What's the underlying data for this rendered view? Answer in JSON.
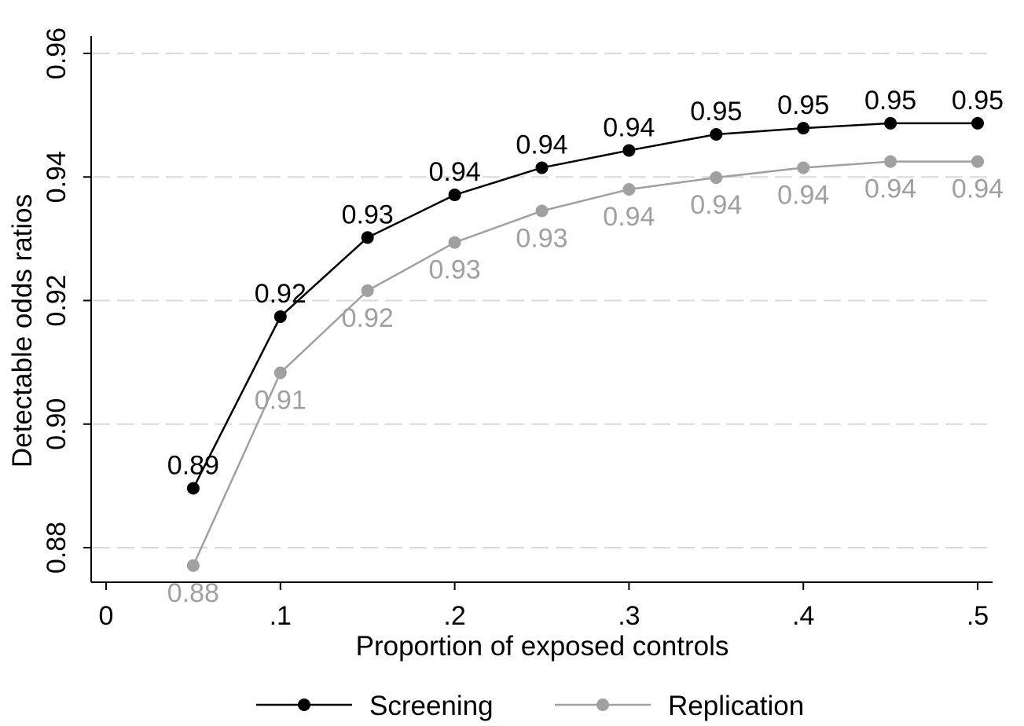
{
  "chart_data": {
    "type": "line",
    "xlabel": "Proportion of exposed controls",
    "ylabel": "Detectable odds ratios",
    "xlim": [
      0,
      0.5
    ],
    "ylim": [
      0.875,
      0.962
    ],
    "x_ticks": [
      {
        "value": 0,
        "label": "0"
      },
      {
        "value": 0.1,
        "label": ".1"
      },
      {
        "value": 0.2,
        "label": ".2"
      },
      {
        "value": 0.3,
        "label": ".3"
      },
      {
        "value": 0.4,
        "label": ".4"
      },
      {
        "value": 0.5,
        "label": ".5"
      }
    ],
    "y_ticks": [
      {
        "value": 0.88,
        "label": "0.88"
      },
      {
        "value": 0.9,
        "label": "0.90"
      },
      {
        "value": 0.92,
        "label": "0.92"
      },
      {
        "value": 0.94,
        "label": "0.94"
      },
      {
        "value": 0.96,
        "label": "0.96"
      }
    ],
    "grid": "horizontal dashed",
    "legend_position": "bottom",
    "x": [
      0.05,
      0.1,
      0.15,
      0.2,
      0.25,
      0.3,
      0.35,
      0.4,
      0.45,
      0.5
    ],
    "series": [
      {
        "name": "Screening",
        "color": "#000000",
        "label_position": "above",
        "values": [
          0.8896,
          0.9174,
          0.9302,
          0.9371,
          0.9415,
          0.9443,
          0.9469,
          0.9479,
          0.9487,
          0.9487
        ],
        "labels": [
          "0.89",
          "0.92",
          "0.93",
          "0.94",
          "0.94",
          "0.94",
          "0.95",
          "0.95",
          "0.95",
          "0.95"
        ]
      },
      {
        "name": "Replication",
        "color": "#a0a0a0",
        "label_position": "below",
        "values": [
          0.8771,
          0.9083,
          0.9216,
          0.9294,
          0.9345,
          0.938,
          0.9399,
          0.9415,
          0.9425,
          0.9425
        ],
        "labels": [
          "0.88",
          "0.91",
          "0.92",
          "0.93",
          "0.93",
          "0.94",
          "0.94",
          "0.94",
          "0.94",
          "0.94"
        ]
      }
    ]
  }
}
